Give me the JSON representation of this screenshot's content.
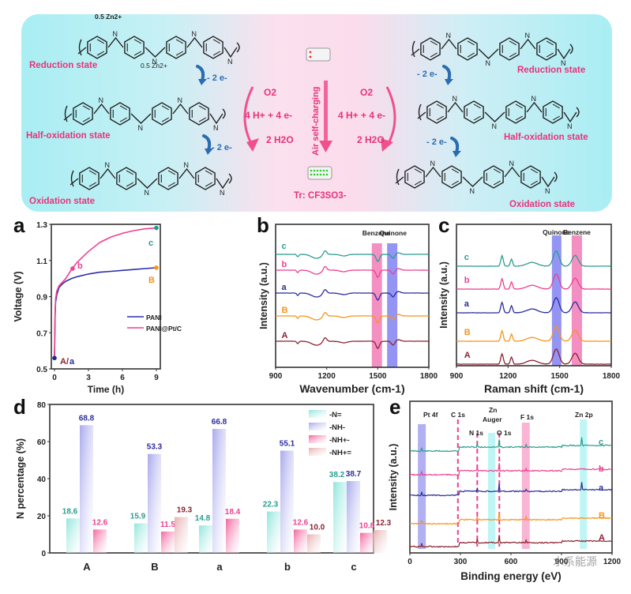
{
  "scheme": {
    "left": {
      "states": [
        "Reduction state",
        "Half-oxidation state",
        "Oxidation state"
      ],
      "zn_labels": [
        "0.5 Zn2+",
        "0.5 Zn2+"
      ],
      "step_labels": [
        "- 2 e-",
        "- 2 e-"
      ]
    },
    "right": {
      "states": [
        "Reduction state",
        "Half-oxidation state",
        "Oxidation state"
      ],
      "step_labels": [
        "- 2 e-",
        "- 2 e-"
      ]
    },
    "center": {
      "o2": "O2",
      "reaction": "4 H+ + 4 e-",
      "product": "2 H2O",
      "process": "Air self-charging",
      "counterion": "Tr: CF3SO3-"
    },
    "colors": {
      "state_label": "#e8337a",
      "electron_step": "#2b6cb0",
      "arrow": "#f0508c"
    }
  },
  "chart_data": [
    {
      "panel": "a",
      "type": "line",
      "xlabel": "Time (h)",
      "ylabel": "Voltage (V)",
      "xlim": [
        0,
        9
      ],
      "ylim": [
        0.5,
        1.3
      ],
      "xticks": [
        "0",
        "3",
        "6",
        "9"
      ],
      "yticks": [
        "0.5",
        "0.7",
        "0.9",
        "1.1",
        "1.3"
      ],
      "legend": {
        "position": "center-right",
        "entries": [
          "PANI",
          "PANI@Pt/C"
        ]
      },
      "series": [
        {
          "name": "PANI",
          "color": "#2d2fa8",
          "x": [
            0,
            0.05,
            0.1,
            0.2,
            0.4,
            0.7,
            1.0,
            1.5,
            2.0,
            3.0,
            4.0,
            5.0,
            6.0,
            7.0,
            8.0,
            9.0
          ],
          "y": [
            0.56,
            0.78,
            0.87,
            0.91,
            0.95,
            0.97,
            0.985,
            1.0,
            1.01,
            1.025,
            1.035,
            1.04,
            1.045,
            1.05,
            1.055,
            1.06
          ]
        },
        {
          "name": "PANI@Pt/C",
          "color": "#ef3f8e",
          "x": [
            0,
            0.05,
            0.1,
            0.2,
            0.4,
            0.7,
            1.0,
            1.5,
            2.0,
            3.0,
            4.0,
            5.0,
            6.0,
            7.0,
            8.0,
            9.0
          ],
          "y": [
            0.56,
            0.8,
            0.89,
            0.93,
            0.96,
            0.98,
            1.0,
            1.05,
            1.09,
            1.15,
            1.2,
            1.23,
            1.25,
            1.265,
            1.275,
            1.28
          ]
        }
      ],
      "points": [
        {
          "label": "A/a",
          "x": 0,
          "y": 0.56,
          "color": "#1d2a8f"
        },
        {
          "label": "b",
          "x": 1.6,
          "y": 1.055,
          "color": "#ef3f8e"
        },
        {
          "label": "B",
          "x": 9,
          "y": 1.06,
          "color": "#f7941d"
        },
        {
          "label": "c",
          "x": 9,
          "y": 1.28,
          "color": "#1f9a8a"
        }
      ]
    },
    {
      "panel": "b",
      "type": "line",
      "xlabel": "Wavenumber (cm-1)",
      "ylabel": "Intensity (a.u.)",
      "xlim": [
        900,
        1800
      ],
      "xticks": [
        "900",
        "1200",
        "1500",
        "1800"
      ],
      "bands": [
        {
          "label": "Benzene",
          "range": [
            1465,
            1525
          ],
          "color": "#f06aae"
        },
        {
          "label": "Quinone",
          "range": [
            1555,
            1615
          ],
          "color": "#7070f0"
        }
      ],
      "series": [
        {
          "name": "c",
          "color": "#2a9d8f",
          "offset": 4
        },
        {
          "name": "b",
          "color": "#ec3f8f",
          "offset": 3
        },
        {
          "name": "a",
          "color": "#2b2d9b",
          "offset": 2
        },
        {
          "name": "B",
          "color": "#f7941d",
          "offset": 1
        },
        {
          "name": "A",
          "color": "#8b2330",
          "offset": 0
        }
      ]
    },
    {
      "panel": "c",
      "type": "line",
      "xlabel": "Raman shift (cm-1)",
      "ylabel": "Intensity (a.u.)",
      "xlim": [
        900,
        1800
      ],
      "xticks": [
        "900",
        "1200",
        "1500",
        "1800"
      ],
      "bands": [
        {
          "label": "Quinone",
          "range": [
            1455,
            1510
          ],
          "color": "#7070f0"
        },
        {
          "label": "Benzene",
          "range": [
            1570,
            1630
          ],
          "color": "#f06aae"
        }
      ],
      "series": [
        {
          "name": "c",
          "color": "#2a9d8f",
          "offset": 4
        },
        {
          "name": "b",
          "color": "#ec3f8f",
          "offset": 3
        },
        {
          "name": "a",
          "color": "#2b2d9b",
          "offset": 2
        },
        {
          "name": "B",
          "color": "#f7941d",
          "offset": 1
        },
        {
          "name": "A",
          "color": "#8b2330",
          "offset": 0
        }
      ]
    },
    {
      "panel": "d",
      "type": "bar",
      "ylabel": "N percentage (%)",
      "ylim": [
        0,
        80
      ],
      "yticks": [
        "0",
        "20",
        "40",
        "60",
        "80"
      ],
      "categories": [
        "A",
        "B",
        "a",
        "b",
        "c"
      ],
      "legend": {
        "position": "top-right"
      },
      "series": [
        {
          "name": "-N=",
          "color": "#8fe6dc",
          "label_color": "#2a9d8f",
          "values": [
            18.6,
            15.9,
            14.8,
            22.3,
            38.2
          ]
        },
        {
          "name": "-NH-",
          "color": "#a9a9ee",
          "label_color": "#2b2d9b",
          "values": [
            68.8,
            53.3,
            66.8,
            55.1,
            38.7
          ]
        },
        {
          "name": "-NH+-",
          "color": "#f5649e",
          "label_color": "#ec3f8f",
          "values": [
            12.6,
            11.5,
            18.4,
            12.6,
            10.8
          ]
        },
        {
          "name": "-NH+=",
          "color": "#e6b0b0",
          "label_color": "#8b2330",
          "values": [
            null,
            19.3,
            null,
            10.0,
            12.3
          ]
        }
      ]
    },
    {
      "panel": "e",
      "type": "line",
      "xlabel": "Binding energy (eV)",
      "ylabel": "Intensity (a.u.)",
      "xlim": [
        0,
        1200
      ],
      "xticks": [
        "0",
        "300",
        "600",
        "900",
        "1200"
      ],
      "annotations": [
        {
          "label": "Pt 4f",
          "x": 71,
          "kind": "band",
          "color": "#9c9cf0"
        },
        {
          "label": "C 1s",
          "x": 285,
          "kind": "dashed",
          "color": "#ec3f8f"
        },
        {
          "label": "N 1s",
          "x": 400,
          "kind": "dashed",
          "color": "#ec3f8f"
        },
        {
          "label": "Zn Auger",
          "x": 485,
          "kind": "band",
          "color": "#aef2f2"
        },
        {
          "label": "O 1s",
          "x": 531,
          "kind": "dashed",
          "color": "#ec3f8f"
        },
        {
          "label": "F 1s",
          "x": 688,
          "kind": "band",
          "color": "#f7a3c8"
        },
        {
          "label": "Zn 2p",
          "x": 1030,
          "kind": "band",
          "color": "#aef2f2"
        }
      ],
      "series": [
        {
          "name": "c",
          "color": "#2a9d8f",
          "offset": 4
        },
        {
          "name": "b",
          "color": "#ec3f8f",
          "offset": 3
        },
        {
          "name": "a",
          "color": "#2b2d9b",
          "offset": 2
        },
        {
          "name": "B",
          "color": "#f7941d",
          "offset": 1
        },
        {
          "name": "A",
          "color": "#8b2330",
          "offset": 0
        }
      ]
    }
  ],
  "panel_labels": [
    "a",
    "b",
    "c",
    "d",
    "e"
  ],
  "watermark": "水系能源"
}
